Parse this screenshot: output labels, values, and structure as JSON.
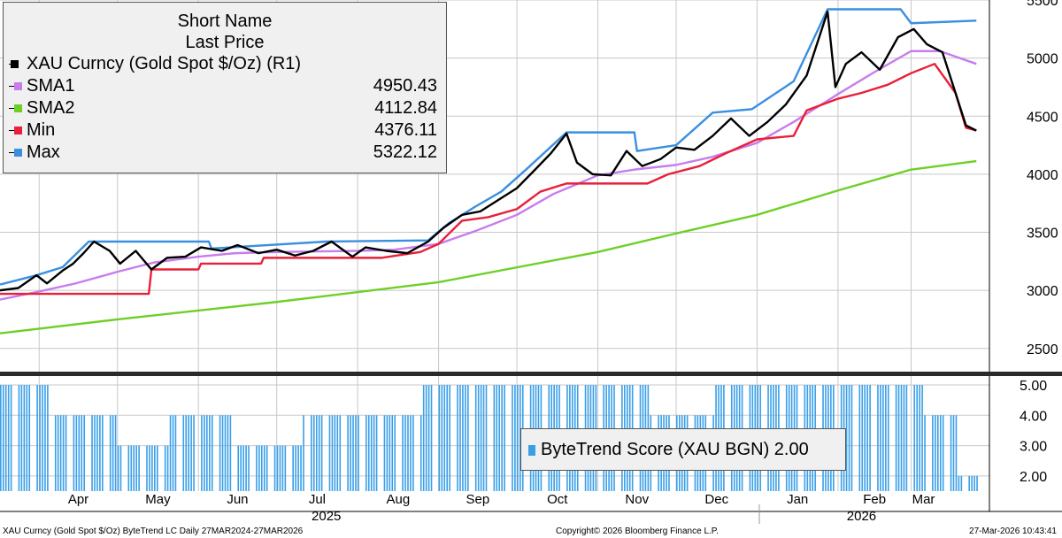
{
  "chart_data": [
    {
      "type": "line",
      "ylim": [
        2300,
        5500
      ],
      "yticks": [
        2500,
        3000,
        3500,
        4000,
        4500,
        5000,
        5500
      ],
      "grid": true,
      "legend_position": "top-left",
      "legend": {
        "header_line1": "Short Name",
        "header_line2": "Last Price",
        "entries": [
          {
            "name": "XAU Curncy (Gold Spot  $/Oz)  (R1)",
            "value": "",
            "color": "#000000"
          },
          {
            "name": "SMA1",
            "value": "4950.43",
            "color": "#c77dec"
          },
          {
            "name": "SMA2",
            "value": "4112.84",
            "color": "#6fcf27"
          },
          {
            "name": "Min",
            "value": "4376.11",
            "color": "#e8203a"
          },
          {
            "name": "Max",
            "value": "5322.12",
            "color": "#3a8fe0"
          }
        ]
      },
      "x_tick_labels": [
        "Apr",
        "May",
        "Jun",
        "Jul",
        "Aug",
        "Sep",
        "Oct",
        "Nov",
        "Dec",
        "Jan",
        "Feb",
        "Mar"
      ],
      "x_tick_positions": [
        "2025-04-01",
        "2025-05-01",
        "2025-06-01",
        "2025-07-01",
        "2025-08-01",
        "2025-09-01",
        "2025-10-01",
        "2025-11-01",
        "2025-12-01",
        "2026-01-01",
        "2026-02-01",
        "2026-03-01"
      ],
      "x_year_labels": [
        {
          "label": "2025",
          "center": "2025-07-20"
        },
        {
          "label": "2026",
          "center": "2026-02-10"
        }
      ],
      "x_range": [
        "2025-03-17",
        "2026-03-31"
      ],
      "series": [
        {
          "name": "XAU Curncy (Gold Spot  $/Oz)  (R1)",
          "color": "#000000",
          "points": [
            [
              "2025-03-17",
              3000
            ],
            [
              "2025-03-24",
              3020
            ],
            [
              "2025-03-31",
              3130
            ],
            [
              "2025-04-04",
              3060
            ],
            [
              "2025-04-10",
              3170
            ],
            [
              "2025-04-14",
              3230
            ],
            [
              "2025-04-18",
              3320
            ],
            [
              "2025-04-22",
              3420
            ],
            [
              "2025-04-28",
              3340
            ],
            [
              "2025-05-02",
              3230
            ],
            [
              "2025-05-08",
              3340
            ],
            [
              "2025-05-14",
              3180
            ],
            [
              "2025-05-20",
              3280
            ],
            [
              "2025-05-27",
              3290
            ],
            [
              "2025-06-02",
              3370
            ],
            [
              "2025-06-10",
              3340
            ],
            [
              "2025-06-16",
              3390
            ],
            [
              "2025-06-24",
              3320
            ],
            [
              "2025-07-01",
              3350
            ],
            [
              "2025-07-08",
              3300
            ],
            [
              "2025-07-15",
              3340
            ],
            [
              "2025-07-22",
              3420
            ],
            [
              "2025-07-30",
              3290
            ],
            [
              "2025-08-04",
              3370
            ],
            [
              "2025-08-12",
              3340
            ],
            [
              "2025-08-20",
              3320
            ],
            [
              "2025-08-28",
              3420
            ],
            [
              "2025-09-03",
              3540
            ],
            [
              "2025-09-10",
              3650
            ],
            [
              "2025-09-17",
              3680
            ],
            [
              "2025-09-24",
              3780
            ],
            [
              "2025-10-01",
              3880
            ],
            [
              "2025-10-08",
              4040
            ],
            [
              "2025-10-14",
              4180
            ],
            [
              "2025-10-20",
              4350
            ],
            [
              "2025-10-24",
              4100
            ],
            [
              "2025-10-30",
              4000
            ],
            [
              "2025-11-06",
              3990
            ],
            [
              "2025-11-12",
              4200
            ],
            [
              "2025-11-18",
              4070
            ],
            [
              "2025-11-25",
              4130
            ],
            [
              "2025-12-01",
              4230
            ],
            [
              "2025-12-08",
              4210
            ],
            [
              "2025-12-15",
              4330
            ],
            [
              "2025-12-22",
              4480
            ],
            [
              "2025-12-29",
              4330
            ],
            [
              "2026-01-05",
              4450
            ],
            [
              "2026-01-12",
              4600
            ],
            [
              "2026-01-20",
              4850
            ],
            [
              "2026-01-28",
              5400
            ],
            [
              "2026-01-31",
              4750
            ],
            [
              "2026-02-04",
              4950
            ],
            [
              "2026-02-10",
              5050
            ],
            [
              "2026-02-17",
              4900
            ],
            [
              "2026-02-24",
              5180
            ],
            [
              "2026-03-02",
              5250
            ],
            [
              "2026-03-07",
              5120
            ],
            [
              "2026-03-13",
              5050
            ],
            [
              "2026-03-18",
              4700
            ],
            [
              "2026-03-22",
              4420
            ],
            [
              "2026-03-26",
              4376
            ]
          ]
        },
        {
          "name": "SMA1",
          "color": "#c77dec",
          "points": [
            [
              "2025-03-17",
              2920
            ],
            [
              "2025-04-01",
              2990
            ],
            [
              "2025-04-15",
              3060
            ],
            [
              "2025-05-01",
              3160
            ],
            [
              "2025-05-15",
              3240
            ],
            [
              "2025-06-01",
              3290
            ],
            [
              "2025-06-15",
              3320
            ],
            [
              "2025-07-01",
              3330
            ],
            [
              "2025-07-15",
              3335
            ],
            [
              "2025-08-01",
              3340
            ],
            [
              "2025-08-15",
              3350
            ],
            [
              "2025-09-01",
              3400
            ],
            [
              "2025-09-15",
              3510
            ],
            [
              "2025-10-01",
              3650
            ],
            [
              "2025-10-15",
              3830
            ],
            [
              "2025-11-01",
              3990
            ],
            [
              "2025-11-15",
              4040
            ],
            [
              "2025-12-01",
              4080
            ],
            [
              "2025-12-15",
              4150
            ],
            [
              "2026-01-01",
              4270
            ],
            [
              "2026-01-15",
              4450
            ],
            [
              "2026-02-01",
              4690
            ],
            [
              "2026-02-15",
              4880
            ],
            [
              "2026-03-01",
              5060
            ],
            [
              "2026-03-12",
              5060
            ],
            [
              "2026-03-26",
              4950
            ]
          ]
        },
        {
          "name": "SMA2",
          "color": "#6fcf27",
          "points": [
            [
              "2025-03-17",
              2630
            ],
            [
              "2025-05-01",
              2750
            ],
            [
              "2025-07-01",
              2900
            ],
            [
              "2025-09-01",
              3070
            ],
            [
              "2025-11-01",
              3330
            ],
            [
              "2025-12-01",
              3490
            ],
            [
              "2026-01-01",
              3650
            ],
            [
              "2026-02-01",
              3860
            ],
            [
              "2026-03-01",
              4040
            ],
            [
              "2026-03-26",
              4113
            ]
          ]
        },
        {
          "name": "Min",
          "color": "#e8203a",
          "points": [
            [
              "2025-03-17",
              2970
            ],
            [
              "2025-05-13",
              2970
            ],
            [
              "2025-05-14",
              3180
            ],
            [
              "2025-06-01",
              3180
            ],
            [
              "2025-06-02",
              3230
            ],
            [
              "2025-06-25",
              3230
            ],
            [
              "2025-06-26",
              3280
            ],
            [
              "2025-08-10",
              3280
            ],
            [
              "2025-08-25",
              3330
            ],
            [
              "2025-09-01",
              3400
            ],
            [
              "2025-09-10",
              3600
            ],
            [
              "2025-09-20",
              3630
            ],
            [
              "2025-10-01",
              3700
            ],
            [
              "2025-10-10",
              3850
            ],
            [
              "2025-10-20",
              3920
            ],
            [
              "2025-11-20",
              3920
            ],
            [
              "2025-11-28",
              4000
            ],
            [
              "2025-12-10",
              4070
            ],
            [
              "2025-12-20",
              4180
            ],
            [
              "2026-01-01",
              4300
            ],
            [
              "2026-01-15",
              4330
            ],
            [
              "2026-01-20",
              4550
            ],
            [
              "2026-02-01",
              4650
            ],
            [
              "2026-02-10",
              4700
            ],
            [
              "2026-02-20",
              4770
            ],
            [
              "2026-03-01",
              4870
            ],
            [
              "2026-03-10",
              4950
            ],
            [
              "2026-03-18",
              4700
            ],
            [
              "2026-03-22",
              4400
            ],
            [
              "2026-03-26",
              4376
            ]
          ]
        },
        {
          "name": "Max",
          "color": "#3a8fe0",
          "points": [
            [
              "2025-03-17",
              3050
            ],
            [
              "2025-03-31",
              3130
            ],
            [
              "2025-04-10",
              3200
            ],
            [
              "2025-04-20",
              3420
            ],
            [
              "2025-06-05",
              3420
            ],
            [
              "2025-06-06",
              3360
            ],
            [
              "2025-07-20",
              3420
            ],
            [
              "2025-08-28",
              3430
            ],
            [
              "2025-09-05",
              3580
            ],
            [
              "2025-09-15",
              3720
            ],
            [
              "2025-09-25",
              3850
            ],
            [
              "2025-10-05",
              4050
            ],
            [
              "2025-10-20",
              4360
            ],
            [
              "2025-11-15",
              4360
            ],
            [
              "2025-11-16",
              4200
            ],
            [
              "2025-12-01",
              4250
            ],
            [
              "2025-12-15",
              4530
            ],
            [
              "2025-12-30",
              4560
            ],
            [
              "2026-01-15",
              4800
            ],
            [
              "2026-01-28",
              5420
            ],
            [
              "2026-02-25",
              5420
            ],
            [
              "2026-03-01",
              5300
            ],
            [
              "2026-03-26",
              5322
            ]
          ]
        }
      ]
    },
    {
      "type": "bar",
      "ylim": [
        1.5,
        5.0
      ],
      "yticks": [
        "2.00",
        "3.00",
        "4.00",
        "5.00"
      ],
      "legend": {
        "name": "ByteTrend Score (XAU BGN)",
        "value": "2.00"
      },
      "color": "#3a9fe8",
      "segments": [
        {
          "from": "2025-03-17",
          "to": "2025-04-05",
          "value": 5
        },
        {
          "from": "2025-04-06",
          "to": "2025-04-30",
          "value": 4
        },
        {
          "from": "2025-05-01",
          "to": "2025-05-20",
          "value": 3
        },
        {
          "from": "2025-05-21",
          "to": "2025-06-15",
          "value": 4
        },
        {
          "from": "2025-06-16",
          "to": "2025-07-10",
          "value": 3
        },
        {
          "from": "2025-07-11",
          "to": "2025-08-25",
          "value": 4
        },
        {
          "from": "2025-08-26",
          "to": "2025-11-20",
          "value": 5
        },
        {
          "from": "2025-11-21",
          "to": "2025-12-15",
          "value": 4
        },
        {
          "from": "2025-12-16",
          "to": "2026-03-05",
          "value": 5
        },
        {
          "from": "2026-03-06",
          "to": "2026-03-18",
          "value": 4
        },
        {
          "from": "2026-03-19",
          "to": "2026-03-26",
          "value": 2
        }
      ]
    }
  ],
  "footer": {
    "left": "XAU Curncy (Gold Spot  $/Oz) ByteTrend LC Daily 27MAR2024-27MAR2026",
    "center": "Copyright© 2026 Bloomberg Finance L.P.",
    "right": "27-Mar-2026 10:43:41"
  }
}
